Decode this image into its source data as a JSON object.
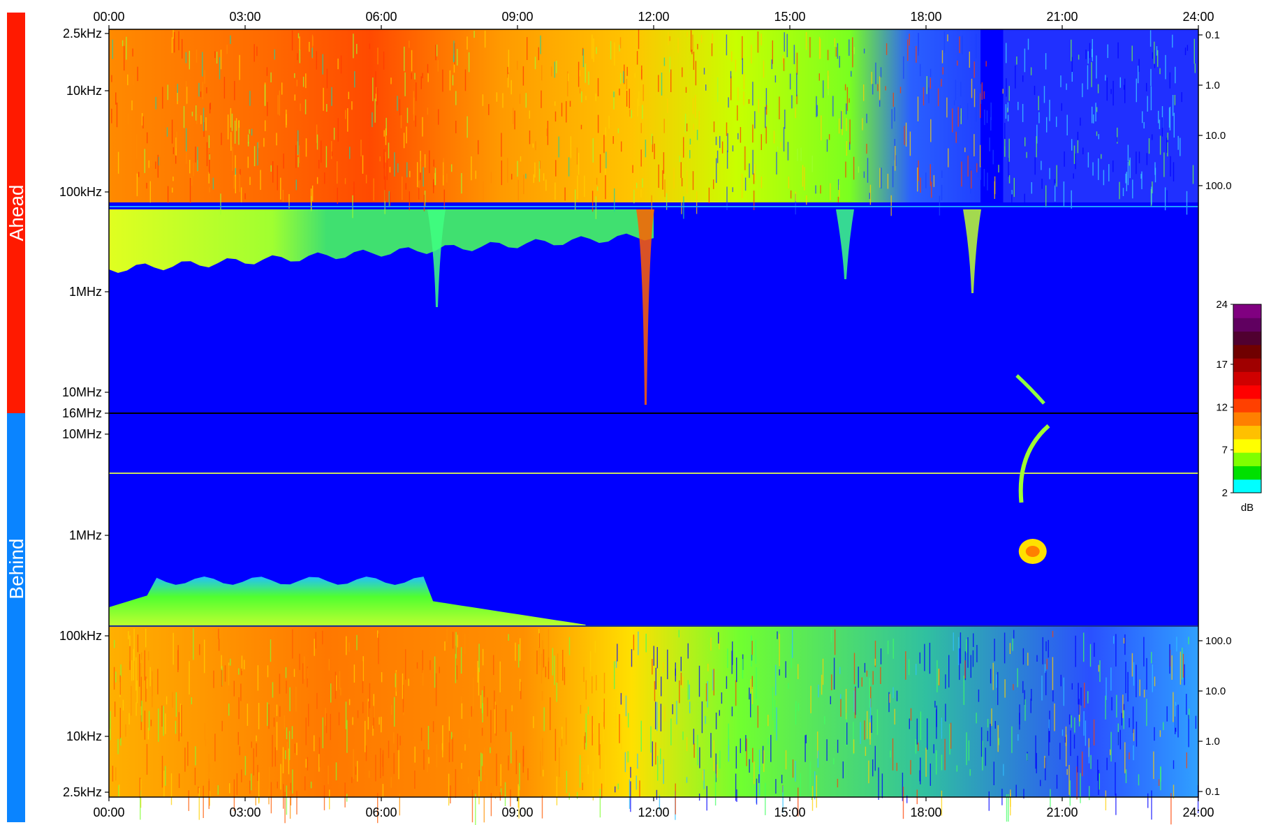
{
  "chart_data": {
    "type": "heatmap",
    "title": "",
    "x_ticks": [
      "00:00",
      "03:00",
      "06:00",
      "09:00",
      "12:00",
      "15:00",
      "18:00",
      "21:00",
      "24:00"
    ],
    "xlim_hours": [
      0,
      24
    ],
    "panels": [
      {
        "name": "Ahead",
        "color": "#ff1a00",
        "freq_ticks": [
          "2.5kHz",
          "10kHz",
          "100kHz",
          "1MHz",
          "10MHz"
        ],
        "freq_range": [
          "2.5kHz",
          "16MHz"
        ],
        "freq_axis": "log, increasing downward",
        "right_ticks": [
          "0.1",
          "1.0",
          "10.0",
          "100.0"
        ]
      },
      {
        "name": "Behind",
        "color": "#0a84ff",
        "freq_ticks": [
          "10MHz",
          "1MHz",
          "100kHz",
          "10kHz",
          "2.5kHz"
        ],
        "freq_range": [
          "16MHz",
          "2.5kHz"
        ],
        "freq_axis": "log, increasing upward",
        "right_ticks": [
          "100.0",
          "10.0",
          "1.0",
          "0.1"
        ]
      }
    ],
    "shared_tick": "16MHz",
    "colorbar": {
      "ticks": [
        "24",
        "17",
        "12",
        "7",
        "2"
      ],
      "range": [
        2,
        24
      ],
      "unit": "dB",
      "colors": [
        "#00ffff",
        "#00e000",
        "#80ff00",
        "#ffff00",
        "#ffc000",
        "#ff8000",
        "#ff4000",
        "#ff0000",
        "#d00000",
        "#a00000",
        "#700000",
        "#500030",
        "#600060",
        "#800080"
      ]
    },
    "background_color": "#0000ff"
  }
}
